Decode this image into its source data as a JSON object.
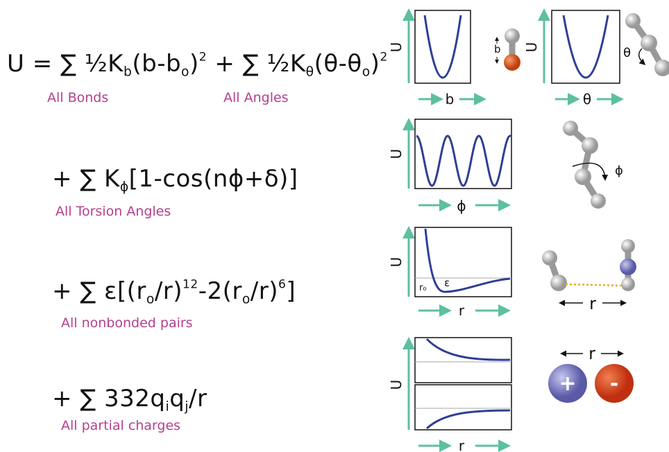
{
  "equation": {
    "line1": [
      "U = ∑ ½K",
      "b",
      "(b-b",
      "o",
      ")",
      "2",
      " + ∑ ½K",
      "θ",
      "(θ-θ",
      "o",
      ")",
      "2"
    ],
    "line2": [
      "+ ∑ K",
      "ϕ",
      "[1-cos(nϕ+δ)]"
    ],
    "line3": [
      "+ ∑ ε[(r",
      "o",
      "/r)",
      "12",
      "-2(r",
      "o",
      "/r)",
      "6",
      "]"
    ],
    "line4": [
      "+ ∑ 332q",
      "i",
      "q",
      "j",
      "/r"
    ]
  },
  "term_labels": [
    "All Bonds",
    "All Angles",
    "All Torsion Angles",
    "All nonbonded pairs",
    "All partial charges"
  ],
  "plots": [
    {
      "y_label": "U",
      "x_label": "b"
    },
    {
      "y_label": "U",
      "x_label": "θ"
    },
    {
      "y_label": "U",
      "x_label": "ϕ"
    },
    {
      "y_label": "U",
      "x_label": "r",
      "annotations": [
        "r₀",
        "ε"
      ]
    },
    {
      "y_label": "U",
      "x_label": "r"
    }
  ],
  "molecule_labels": {
    "bond": "b",
    "angle": "θ",
    "torsion": "ϕ",
    "distance": "r",
    "charge_distance": "r",
    "positive": "+",
    "negative": "-"
  }
}
